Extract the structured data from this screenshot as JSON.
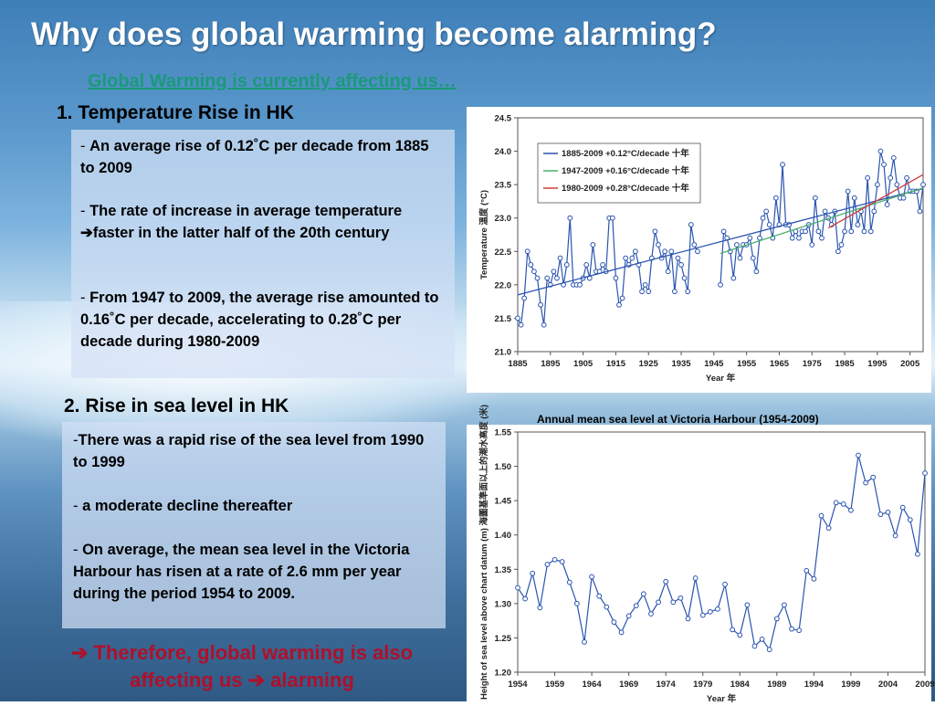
{
  "slide": {
    "title": "Why does global warming become alarming?",
    "subtitle": "Global Warming is currently affecting us…",
    "section1": "1. Temperature Rise in HK",
    "section1_points": [
      {
        "dash": "- ",
        "text": "An average rise of 0.12˚C per decade from 1885 to 2009"
      },
      {
        "dash": "- ",
        "text": "The rate of increase in average temperature ➔faster in the latter half of the 20th century"
      },
      {
        "dash": "- ",
        "text": "From 1947 to 2009, the average rise amounted to 0.16˚C per decade, accelerating to 0.28˚C per decade during 1980-2009"
      }
    ],
    "section2": "2. Rise in sea level in HK",
    "section2_points": [
      {
        "dash": "-",
        "text": "There was a rapid rise of the sea level from 1990 to 1999"
      },
      {
        "dash": "- ",
        "text": "a moderate decline thereafter"
      },
      {
        "dash": "- ",
        "text": "On average, the mean sea level in the Victoria Harbour has risen at a rate of 2.6 mm per year during the period 1954 to 2009."
      }
    ],
    "conclusion_line1": "➔ Therefore, global warming is also",
    "conclusion_line2": "affecting us ➔ alarming",
    "colors": {
      "title": "#ffffff",
      "subtitle": "#1a9a7a",
      "conclusion": "#b0102a"
    }
  },
  "chart_data": [
    {
      "type": "line",
      "title": "",
      "xlabel": "Year 年",
      "ylabel": "Temperature 溫度 (°C)",
      "xlim": [
        1885,
        2009
      ],
      "ylim": [
        21.0,
        24.5
      ],
      "yticks": [
        "21.0",
        "21.5",
        "22.0",
        "22.5",
        "23.0",
        "23.5",
        "24.0",
        "24.5"
      ],
      "xticks": [
        "1885",
        "1895",
        "1905",
        "1915",
        "1925",
        "1935",
        "1945",
        "1955",
        "1965",
        "1975",
        "1985",
        "1995",
        "2005"
      ],
      "legend_position": "top-left",
      "grid": false,
      "series": [
        {
          "name": "",
          "color": "#2a54b0",
          "x": [
            1885,
            1886,
            1887,
            1888,
            1889,
            1890,
            1891,
            1892,
            1893,
            1894,
            1895,
            1896,
            1897,
            1898,
            1899,
            1900,
            1901,
            1902,
            1903,
            1904,
            1905,
            1906,
            1907,
            1908,
            1909,
            1910,
            1911,
            1912,
            1913,
            1914,
            1915,
            1916,
            1917,
            1918,
            1919,
            1920,
            1921,
            1922,
            1923,
            1924,
            1925,
            1926,
            1927,
            1928,
            1929,
            1930,
            1931,
            1932,
            1933,
            1934,
            1935,
            1936,
            1937,
            1938,
            1939,
            1940
          ],
          "y": [
            21.5,
            21.4,
            21.8,
            22.5,
            22.3,
            22.2,
            22.1,
            21.7,
            21.4,
            22.1,
            22.0,
            22.2,
            22.1,
            22.4,
            22.0,
            22.3,
            23.0,
            22.0,
            22.0,
            22.0,
            22.1,
            22.3,
            22.1,
            22.6,
            22.2,
            22.2,
            22.3,
            22.2,
            23.0,
            23.0,
            22.1,
            21.7,
            21.8,
            22.4,
            22.3,
            22.4,
            22.5,
            22.3,
            21.9,
            22.0,
            21.9,
            22.4,
            22.8,
            22.6,
            22.4,
            22.5,
            22.2,
            22.5,
            21.9,
            22.4,
            22.3,
            22.1,
            21.9,
            22.9,
            22.6,
            22.5
          ]
        },
        {
          "name": "",
          "color": "#2a54b0",
          "x": [
            1947,
            1948,
            1949,
            1950,
            1951,
            1952,
            1953,
            1954,
            1955,
            1956,
            1957,
            1958,
            1959,
            1960,
            1961,
            1962,
            1963,
            1964,
            1965,
            1966,
            1967,
            1968,
            1969,
            1970,
            1971,
            1972,
            1973,
            1974,
            1975,
            1976,
            1977,
            1978,
            1979,
            1980,
            1981,
            1982,
            1983,
            1984,
            1985,
            1986,
            1987,
            1988,
            1989,
            1990,
            1991,
            1992,
            1993,
            1994,
            1995,
            1996,
            1997,
            1998,
            1999,
            2000,
            2001,
            2002,
            2003,
            2004,
            2005,
            2006,
            2007,
            2008,
            2009
          ],
          "y": [
            22.0,
            22.8,
            22.7,
            22.5,
            22.1,
            22.6,
            22.4,
            22.6,
            22.6,
            22.7,
            22.4,
            22.2,
            22.7,
            23.0,
            23.1,
            22.9,
            22.7,
            23.3,
            22.9,
            23.8,
            22.9,
            22.9,
            22.7,
            22.8,
            22.7,
            22.8,
            22.8,
            22.9,
            22.6,
            23.3,
            22.8,
            22.7,
            23.1,
            23.0,
            22.9,
            23.1,
            22.5,
            22.6,
            22.8,
            23.4,
            22.8,
            23.3,
            22.9,
            23.1,
            22.8,
            23.6,
            22.8,
            23.1,
            23.5,
            24.0,
            23.8,
            23.2,
            23.6,
            23.9,
            23.5,
            23.3,
            23.3,
            23.6,
            23.4,
            23.4,
            23.4,
            23.1,
            23.5
          ]
        },
        {
          "name": "1885-2009 +0.12°C/decade 十年",
          "color": "#2a54b0",
          "trend": true,
          "x": [
            1885,
            2009
          ],
          "y": [
            21.85,
            23.44
          ]
        },
        {
          "name": "1947-2009 +0.16°C/decade 十年",
          "color": "#4caf6e",
          "trend": true,
          "x": [
            1947,
            2009
          ],
          "y": [
            22.47,
            23.45
          ]
        },
        {
          "name": "1980-2009 +0.28°C/decade 十年",
          "color": "#d03a3a",
          "trend": true,
          "x": [
            1980,
            2009
          ],
          "y": [
            22.85,
            23.65
          ]
        }
      ]
    },
    {
      "type": "line",
      "title": "Annual mean sea level at Victoria Harbour (1954-2009)",
      "xlabel": "Year 年",
      "ylabel": "Height of sea level above chart datum (m) 海圖基準面以上的潮水高度 (米)",
      "xlim": [
        1954,
        2009
      ],
      "ylim": [
        1.2,
        1.55
      ],
      "yticks": [
        "1.20",
        "1.25",
        "1.30",
        "1.35",
        "1.40",
        "1.45",
        "1.50",
        "1.55"
      ],
      "xticks": [
        "1954",
        "1959",
        "1964",
        "1969",
        "1974",
        "1979",
        "1984",
        "1989",
        "1994",
        "1999",
        "2004",
        "2009"
      ],
      "grid": false,
      "series": [
        {
          "name": "",
          "color": "#2a54b0",
          "x": [
            1954,
            1955,
            1956,
            1957,
            1958,
            1959,
            1960,
            1961,
            1962,
            1963,
            1964,
            1965,
            1966,
            1967,
            1968,
            1969,
            1970,
            1971,
            1972,
            1973,
            1974,
            1975,
            1976,
            1977,
            1978,
            1979,
            1980,
            1981,
            1982,
            1983,
            1984,
            1985,
            1986,
            1987,
            1988,
            1989,
            1990,
            1991,
            1992,
            1993,
            1994,
            1995,
            1996,
            1997,
            1998,
            1999,
            2000,
            2001,
            2002,
            2003,
            2004,
            2005,
            2006,
            2007,
            2008,
            2009
          ],
          "y": [
            1.323,
            1.307,
            1.344,
            1.294,
            1.357,
            1.364,
            1.361,
            1.331,
            1.3,
            1.244,
            1.339,
            1.311,
            1.295,
            1.273,
            1.258,
            1.282,
            1.297,
            1.314,
            1.285,
            1.302,
            1.332,
            1.302,
            1.308,
            1.278,
            1.337,
            1.283,
            1.288,
            1.292,
            1.328,
            1.262,
            1.254,
            1.298,
            1.238,
            1.248,
            1.233,
            1.278,
            1.298,
            1.263,
            1.261,
            1.348,
            1.336,
            1.428,
            1.41,
            1.447,
            1.445,
            1.436,
            1.516,
            1.476,
            1.484,
            1.43,
            1.433,
            1.399,
            1.44,
            1.422,
            1.372,
            1.49
          ]
        }
      ]
    }
  ]
}
